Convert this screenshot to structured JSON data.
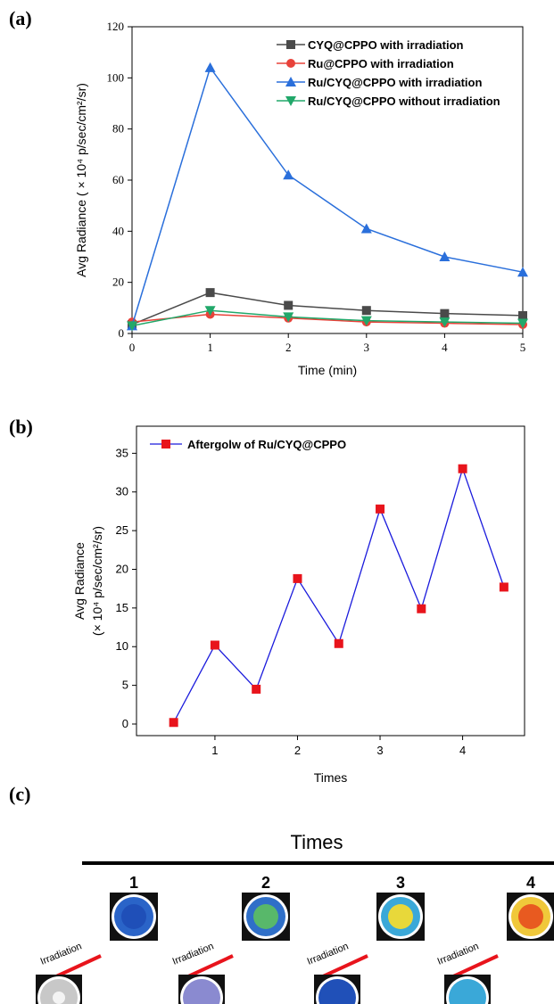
{
  "panels": {
    "a": "(a)",
    "b": "(b)",
    "c": "(c)"
  },
  "chart_data": [
    {
      "type": "line",
      "x": [
        0,
        1,
        2,
        3,
        4,
        5
      ],
      "xlabel": "Time (min)",
      "ylabel": "Avg Radiance ( × 10⁴ p/sec/cm²/sr)",
      "xlim": [
        0,
        5
      ],
      "ylim": [
        0,
        120
      ],
      "xticks": [
        "0",
        "1",
        "2",
        "3",
        "4",
        "5"
      ],
      "yticks": [
        "0",
        "20",
        "40",
        "60",
        "80",
        "100",
        "120"
      ],
      "legend_position": "top-right",
      "series": [
        {
          "name": "CYQ@CPPO with irradiation",
          "color": "#4a4a4a",
          "marker": "square",
          "values": [
            3.5,
            16,
            11,
            9,
            7.8,
            7
          ]
        },
        {
          "name": "Ru@CPPO with irradiation",
          "color": "#e8423a",
          "marker": "circle",
          "values": [
            4.5,
            7.5,
            6,
            4.5,
            4,
            3.5
          ]
        },
        {
          "name": "Ru/CYQ@CPPO with irradiation",
          "color": "#2a6fdb",
          "marker": "triangle-up",
          "values": [
            3,
            104,
            62,
            41,
            30,
            24
          ]
        },
        {
          "name": "Ru/CYQ@CPPO without irradiation",
          "color": "#21a86a",
          "marker": "triangle-down",
          "values": [
            3,
            9,
            6.5,
            5,
            4.5,
            4
          ]
        }
      ]
    },
    {
      "type": "line",
      "x": [
        0.5,
        1,
        1.5,
        2,
        2.5,
        3,
        3.5,
        4,
        4.5
      ],
      "xlabel": "Times",
      "ylabel_line1": "Avg Radiance",
      "ylabel_line2": "(× 10⁴ p/sec/cm²/sr)",
      "xlim": [
        0.05,
        4.75
      ],
      "ylim": [
        -1.5,
        38.5
      ],
      "xticks": [
        "1",
        "2",
        "3",
        "4"
      ],
      "yticks": [
        "0",
        "5",
        "10",
        "15",
        "20",
        "25",
        "30",
        "35"
      ],
      "legend_position": "top-left",
      "series": [
        {
          "name": "Aftergolw of Ru/CYQ@CPPO",
          "color": "#1a1adc",
          "marker_color": "#e8141c",
          "marker": "square",
          "values": [
            0.2,
            10.2,
            4.5,
            18.8,
            10.4,
            27.8,
            14.9,
            33,
            17.7
          ]
        }
      ]
    }
  ],
  "panel_c": {
    "title": "Times",
    "numbers": [
      "1",
      "2",
      "3",
      "4"
    ],
    "irradiation_label": "Irradiation"
  }
}
